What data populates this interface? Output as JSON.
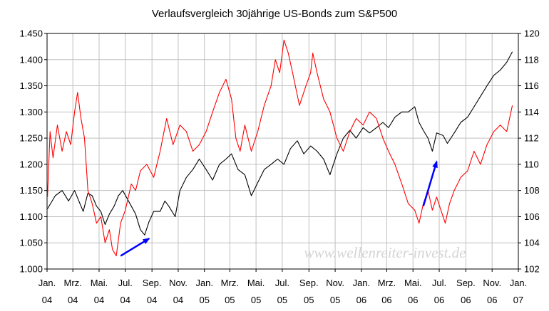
{
  "chart_data": {
    "type": "line",
    "title": "Verlaufsvergleich 30jährige US-Bonds zum S&P500",
    "watermark": "www.wellenreiter-invest.de",
    "grid": true,
    "legend": "none",
    "x_range": [
      "2004-01-01",
      "2007-01-01"
    ],
    "x_ticks": [
      {
        "date": "2004-01-01",
        "month": "Jan.",
        "year": "04"
      },
      {
        "date": "2004-03-01",
        "month": "Mrz.",
        "year": "04"
      },
      {
        "date": "2004-05-01",
        "month": "Mai.",
        "year": "04"
      },
      {
        "date": "2004-07-01",
        "month": "Jul.",
        "year": "04"
      },
      {
        "date": "2004-09-01",
        "month": "Sep.",
        "year": "04"
      },
      {
        "date": "2004-11-01",
        "month": "Nov.",
        "year": "04"
      },
      {
        "date": "2005-01-01",
        "month": "Jan.",
        "year": "05"
      },
      {
        "date": "2005-03-01",
        "month": "Mrz.",
        "year": "05"
      },
      {
        "date": "2005-05-01",
        "month": "Mai.",
        "year": "05"
      },
      {
        "date": "2005-07-01",
        "month": "Jul.",
        "year": "05"
      },
      {
        "date": "2005-09-01",
        "month": "Sep.",
        "year": "05"
      },
      {
        "date": "2005-11-01",
        "month": "Nov.",
        "year": "05"
      },
      {
        "date": "2006-01-01",
        "month": "Jan.",
        "year": "06"
      },
      {
        "date": "2006-03-01",
        "month": "Mrz.",
        "year": "06"
      },
      {
        "date": "2006-05-01",
        "month": "Mai.",
        "year": "06"
      },
      {
        "date": "2006-07-01",
        "month": "Jul.",
        "year": "06"
      },
      {
        "date": "2006-09-01",
        "month": "Sep.",
        "year": "06"
      },
      {
        "date": "2006-11-01",
        "month": "Nov.",
        "year": "06"
      },
      {
        "date": "2007-01-01",
        "month": "Jan.",
        "year": "07"
      }
    ],
    "y_left": {
      "lim": [
        1.0,
        1.45
      ],
      "ticks": [
        1.0,
        1.05,
        1.1,
        1.15,
        1.2,
        1.25,
        1.3,
        1.35,
        1.4,
        1.45
      ],
      "tick_labels": [
        "1.000",
        "1.050",
        "1.100",
        "1.150",
        "1.200",
        "1.250",
        "1.300",
        "1.350",
        "1.400",
        "1.450"
      ]
    },
    "y_right": {
      "lim": [
        102,
        120
      ],
      "ticks": [
        102,
        104,
        106,
        108,
        110,
        112,
        114,
        116,
        118,
        120
      ],
      "tick_labels": [
        "102",
        "104",
        "106",
        "108",
        "110",
        "112",
        "114",
        "116",
        "118",
        "120"
      ]
    },
    "series": [
      {
        "axis": "left",
        "color": "#000000",
        "points": [
          [
            "2004-01-02",
            1.115
          ],
          [
            "2004-01-20",
            1.14
          ],
          [
            "2004-02-05",
            1.15
          ],
          [
            "2004-02-20",
            1.13
          ],
          [
            "2004-03-05",
            1.15
          ],
          [
            "2004-03-15",
            1.13
          ],
          [
            "2004-03-25",
            1.11
          ],
          [
            "2004-04-05",
            1.145
          ],
          [
            "2004-04-15",
            1.14
          ],
          [
            "2004-04-25",
            1.12
          ],
          [
            "2004-05-05",
            1.11
          ],
          [
            "2004-05-15",
            1.085
          ],
          [
            "2004-05-25",
            1.105
          ],
          [
            "2004-06-05",
            1.12
          ],
          [
            "2004-06-15",
            1.14
          ],
          [
            "2004-06-25",
            1.15
          ],
          [
            "2004-07-05",
            1.135
          ],
          [
            "2004-07-15",
            1.12
          ],
          [
            "2004-07-25",
            1.105
          ],
          [
            "2004-08-05",
            1.075
          ],
          [
            "2004-08-15",
            1.065
          ],
          [
            "2004-08-25",
            1.09
          ],
          [
            "2004-09-05",
            1.11
          ],
          [
            "2004-09-20",
            1.11
          ],
          [
            "2004-10-01",
            1.13
          ],
          [
            "2004-10-10",
            1.12
          ],
          [
            "2004-10-25",
            1.1
          ],
          [
            "2004-11-05",
            1.15
          ],
          [
            "2004-11-20",
            1.175
          ],
          [
            "2004-12-05",
            1.19
          ],
          [
            "2004-12-20",
            1.21
          ],
          [
            "2005-01-05",
            1.19
          ],
          [
            "2005-01-20",
            1.17
          ],
          [
            "2005-02-05",
            1.2
          ],
          [
            "2005-02-20",
            1.21
          ],
          [
            "2005-03-05",
            1.22
          ],
          [
            "2005-03-20",
            1.19
          ],
          [
            "2005-04-05",
            1.18
          ],
          [
            "2005-04-20",
            1.14
          ],
          [
            "2005-05-05",
            1.165
          ],
          [
            "2005-05-20",
            1.19
          ],
          [
            "2005-06-05",
            1.2
          ],
          [
            "2005-06-20",
            1.21
          ],
          [
            "2005-07-05",
            1.2
          ],
          [
            "2005-07-20",
            1.23
          ],
          [
            "2005-08-05",
            1.245
          ],
          [
            "2005-08-20",
            1.22
          ],
          [
            "2005-09-05",
            1.235
          ],
          [
            "2005-09-20",
            1.225
          ],
          [
            "2005-10-05",
            1.21
          ],
          [
            "2005-10-20",
            1.18
          ],
          [
            "2005-11-05",
            1.22
          ],
          [
            "2005-11-20",
            1.25
          ],
          [
            "2005-12-05",
            1.265
          ],
          [
            "2005-12-20",
            1.25
          ],
          [
            "2006-01-05",
            1.27
          ],
          [
            "2006-01-20",
            1.26
          ],
          [
            "2006-02-05",
            1.27
          ],
          [
            "2006-02-20",
            1.28
          ],
          [
            "2006-03-05",
            1.27
          ],
          [
            "2006-03-20",
            1.29
          ],
          [
            "2006-04-05",
            1.3
          ],
          [
            "2006-04-20",
            1.3
          ],
          [
            "2006-05-05",
            1.31
          ],
          [
            "2006-05-15",
            1.28
          ],
          [
            "2006-05-25",
            1.265
          ],
          [
            "2006-06-05",
            1.25
          ],
          [
            "2006-06-15",
            1.225
          ],
          [
            "2006-06-25",
            1.26
          ],
          [
            "2006-07-10",
            1.255
          ],
          [
            "2006-07-20",
            1.24
          ],
          [
            "2006-08-05",
            1.26
          ],
          [
            "2006-08-20",
            1.28
          ],
          [
            "2006-09-05",
            1.29
          ],
          [
            "2006-09-20",
            1.31
          ],
          [
            "2006-10-05",
            1.33
          ],
          [
            "2006-10-20",
            1.35
          ],
          [
            "2006-11-05",
            1.37
          ],
          [
            "2006-11-20",
            1.38
          ],
          [
            "2006-12-05",
            1.395
          ],
          [
            "2006-12-18",
            1.415
          ]
        ]
      },
      {
        "axis": "right",
        "color": "#ff0000",
        "points": [
          [
            "2004-01-02",
            107.5
          ],
          [
            "2004-01-08",
            112.5
          ],
          [
            "2004-01-15",
            110.5
          ],
          [
            "2004-01-25",
            113.0
          ],
          [
            "2004-02-05",
            111.0
          ],
          [
            "2004-02-15",
            112.5
          ],
          [
            "2004-02-25",
            111.5
          ],
          [
            "2004-03-05",
            114.0
          ],
          [
            "2004-03-12",
            115.5
          ],
          [
            "2004-03-20",
            113.5
          ],
          [
            "2004-03-28",
            112.0
          ],
          [
            "2004-04-05",
            108.0
          ],
          [
            "2004-04-15",
            107.0
          ],
          [
            "2004-04-25",
            105.5
          ],
          [
            "2004-05-05",
            106.0
          ],
          [
            "2004-05-15",
            104.0
          ],
          [
            "2004-05-25",
            105.0
          ],
          [
            "2004-06-01",
            103.5
          ],
          [
            "2004-06-10",
            103.0
          ],
          [
            "2004-06-20",
            105.5
          ],
          [
            "2004-07-01",
            106.5
          ],
          [
            "2004-07-15",
            108.5
          ],
          [
            "2004-07-25",
            108.0
          ],
          [
            "2004-08-05",
            109.5
          ],
          [
            "2004-08-20",
            110.0
          ],
          [
            "2004-09-05",
            109.0
          ],
          [
            "2004-09-20",
            111.0
          ],
          [
            "2004-10-05",
            113.5
          ],
          [
            "2004-10-20",
            111.5
          ],
          [
            "2004-11-05",
            113.0
          ],
          [
            "2004-11-20",
            112.5
          ],
          [
            "2004-12-05",
            111.0
          ],
          [
            "2004-12-20",
            111.5
          ],
          [
            "2005-01-05",
            112.5
          ],
          [
            "2005-01-20",
            114.0
          ],
          [
            "2005-02-05",
            115.5
          ],
          [
            "2005-02-20",
            116.5
          ],
          [
            "2005-03-05",
            115.0
          ],
          [
            "2005-03-15",
            112.0
          ],
          [
            "2005-03-25",
            111.0
          ],
          [
            "2005-04-05",
            113.0
          ],
          [
            "2005-04-20",
            111.0
          ],
          [
            "2005-05-05",
            112.5
          ],
          [
            "2005-05-20",
            114.5
          ],
          [
            "2005-06-05",
            116.0
          ],
          [
            "2005-06-15",
            118.0
          ],
          [
            "2005-06-25",
            117.0
          ],
          [
            "2005-07-05",
            119.5
          ],
          [
            "2005-07-15",
            118.5
          ],
          [
            "2005-07-25",
            117.0
          ],
          [
            "2005-08-10",
            114.5
          ],
          [
            "2005-08-25",
            116.0
          ],
          [
            "2005-09-05",
            117.0
          ],
          [
            "2005-09-10",
            118.5
          ],
          [
            "2005-09-20",
            117.0
          ],
          [
            "2005-10-05",
            115.0
          ],
          [
            "2005-10-20",
            114.0
          ],
          [
            "2005-11-05",
            112.0
          ],
          [
            "2005-11-20",
            111.0
          ],
          [
            "2005-12-05",
            112.5
          ],
          [
            "2005-12-20",
            113.5
          ],
          [
            "2006-01-05",
            113.0
          ],
          [
            "2006-01-20",
            114.0
          ],
          [
            "2006-02-05",
            113.5
          ],
          [
            "2006-02-20",
            112.0
          ],
          [
            "2006-03-05",
            111.0
          ],
          [
            "2006-03-20",
            110.0
          ],
          [
            "2006-04-05",
            108.5
          ],
          [
            "2006-04-20",
            107.0
          ],
          [
            "2006-05-05",
            106.5
          ],
          [
            "2006-05-15",
            105.5
          ],
          [
            "2006-05-25",
            107.0
          ],
          [
            "2006-06-05",
            108.0
          ],
          [
            "2006-06-15",
            106.5
          ],
          [
            "2006-06-25",
            107.5
          ],
          [
            "2006-07-05",
            106.5
          ],
          [
            "2006-07-15",
            105.5
          ],
          [
            "2006-07-25",
            107.0
          ],
          [
            "2006-08-05",
            108.0
          ],
          [
            "2006-08-20",
            109.0
          ],
          [
            "2006-09-05",
            109.5
          ],
          [
            "2006-09-20",
            111.0
          ],
          [
            "2006-10-05",
            110.0
          ],
          [
            "2006-10-20",
            111.5
          ],
          [
            "2006-11-05",
            112.5
          ],
          [
            "2006-11-20",
            113.0
          ],
          [
            "2006-12-05",
            112.5
          ],
          [
            "2006-12-18",
            114.5
          ]
        ]
      }
    ],
    "annotations": [
      {
        "type": "arrow",
        "color": "#0000ff",
        "axis": "left",
        "from": [
          "2004-06-20",
          1.025
        ],
        "to": [
          "2004-08-25",
          1.058
        ]
      },
      {
        "type": "arrow",
        "color": "#0000ff",
        "axis": "left",
        "from": [
          "2006-05-25",
          1.12
        ],
        "to": [
          "2006-06-25",
          1.205
        ]
      }
    ]
  }
}
